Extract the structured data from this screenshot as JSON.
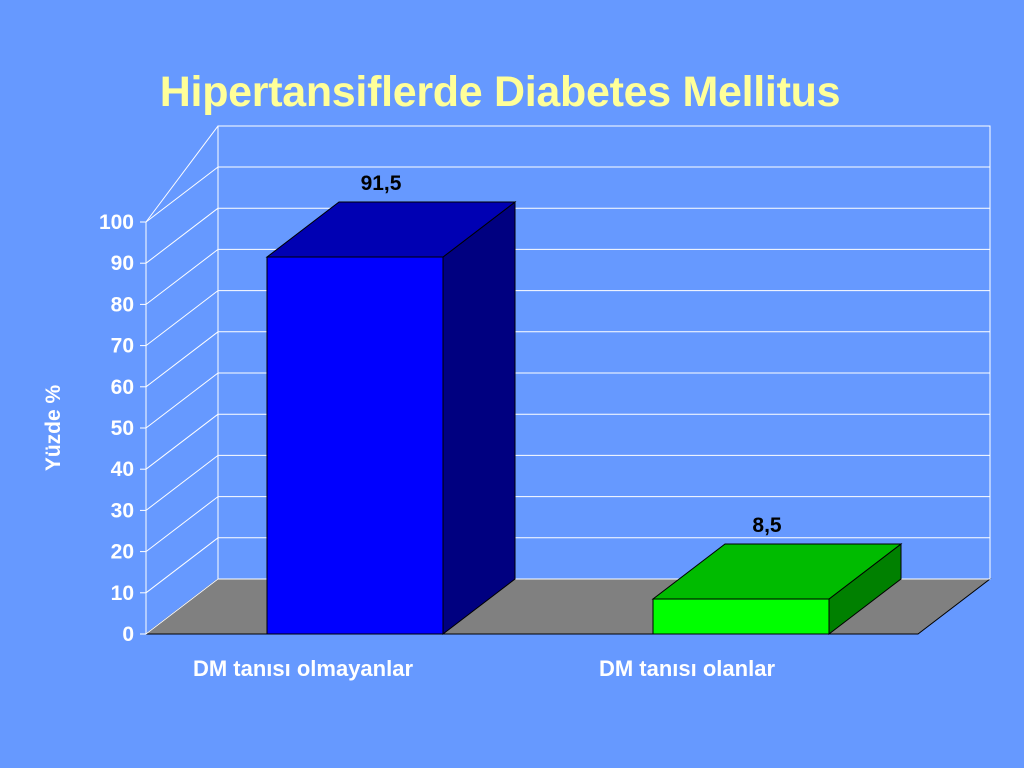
{
  "slide": {
    "title": "Hipertansiflerde Diabetes Mellitus"
  },
  "colors": {
    "background": "#6699ff",
    "title": "#ffff99",
    "floor": "#808080",
    "gridline": "#ffffff"
  },
  "chart_data": {
    "type": "bar",
    "title": "Hipertansiflerde Diabetes Mellitus",
    "xlabel": "",
    "ylabel": "Yüzde %",
    "ylim": [
      0,
      100
    ],
    "ytick_step": 10,
    "grid": true,
    "style": "3d",
    "categories": [
      "DM tanısı olmayanlar",
      "DM tanısı olanlar"
    ],
    "values": [
      91.5,
      8.5
    ],
    "value_labels": [
      "91,5",
      "8,5"
    ],
    "bar_colors": [
      {
        "front": "#0000ff",
        "top": "#0000b3",
        "side": "#000080"
      },
      {
        "front": "#00ff00",
        "top": "#00bb00",
        "side": "#008000"
      }
    ]
  }
}
